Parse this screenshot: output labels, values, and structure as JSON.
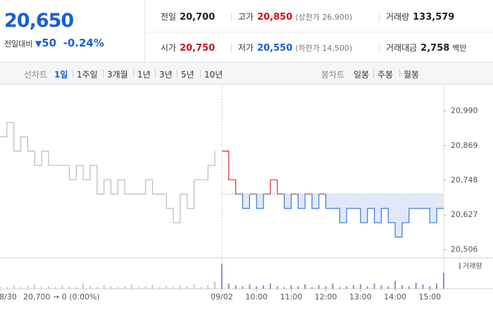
{
  "header": {
    "price": "20,650",
    "change_label": "전일대비",
    "change": "50",
    "change_pct": "-0.24%",
    "stats": [
      {
        "label": "전일",
        "value": "20,700"
      },
      {
        "label": "고가",
        "value": "20,850",
        "note": "(상한가 26,900)"
      },
      {
        "label": "거래량",
        "value": "133,579"
      },
      {
        "label": "시가",
        "value": "20,750"
      },
      {
        "label": "저가",
        "value": "20,550",
        "note": "(하한가 14,500)"
      },
      {
        "label": "거래대금",
        "value": "2,758",
        "note": "백만"
      }
    ]
  },
  "tabs": {
    "line_label": "선차트",
    "line": [
      "1일",
      "1주일",
      "3개월",
      "1년",
      "3년",
      "5년",
      "10년"
    ],
    "selected": 0,
    "candle_label": "봉차트",
    "candle": [
      "일봉",
      "주봉",
      "월봉"
    ]
  },
  "chart_data": {
    "type": "line",
    "categories": [
      "08/30",
      null,
      null,
      null,
      null,
      null,
      null,
      null,
      null,
      null,
      null,
      null,
      null,
      null,
      null,
      null,
      null,
      null,
      null,
      null,
      null,
      null,
      null,
      null,
      null,
      null,
      null,
      null,
      null,
      null,
      null,
      null,
      "09/02",
      null,
      null,
      null,
      null,
      "10:00",
      null,
      null,
      null,
      null,
      "11:00",
      null,
      null,
      null,
      null,
      "12:00",
      null,
      null,
      null,
      null,
      "13:00",
      null,
      null,
      null,
      null,
      "14:00",
      null,
      null,
      null,
      null,
      "15:00",
      null,
      null
    ],
    "series": [
      {
        "color": "#bbbbbb",
        "values": [
          20900,
          20950,
          20850,
          20900,
          20850,
          20800,
          20850,
          20800,
          20800,
          20800,
          20750,
          20800,
          20750,
          20800,
          20700,
          20750,
          20700,
          20750,
          20700,
          20700,
          20700,
          20750,
          20700,
          20700,
          20650,
          20600,
          20700,
          20650,
          20750,
          20750,
          20800,
          20850,
          null,
          null,
          null,
          null,
          null,
          null,
          null,
          null,
          null,
          null,
          null,
          null,
          null,
          null,
          null,
          null,
          null,
          null,
          null,
          null,
          null,
          null,
          null,
          null,
          null,
          null,
          null,
          null,
          null,
          null,
          null,
          null,
          null
        ]
      },
      {
        "color": "#3b78d8",
        "color_up": "#e0262e",
        "fill": "#dfe9f8",
        "values": [
          null,
          null,
          null,
          null,
          null,
          null,
          null,
          null,
          null,
          null,
          null,
          null,
          null,
          null,
          null,
          null,
          null,
          null,
          null,
          null,
          null,
          null,
          null,
          null,
          null,
          null,
          null,
          null,
          null,
          null,
          null,
          null,
          20850,
          20750,
          20700,
          20650,
          20700,
          20650,
          20700,
          20750,
          20700,
          20650,
          20700,
          20650,
          20700,
          20650,
          20700,
          20650,
          20650,
          20600,
          20650,
          20650,
          20600,
          20650,
          20600,
          20650,
          20600,
          20550,
          20600,
          20650,
          20650,
          20650,
          20600,
          20650,
          20650
        ]
      }
    ],
    "baseline": 20700,
    "ylim": [
      20480,
      21070
    ],
    "yticks": [
      {
        "value": 20506,
        "label": "20,506"
      },
      {
        "value": 20627,
        "label": "20,627"
      },
      {
        "value": 20748,
        "label": "20,748"
      },
      {
        "value": 20869,
        "label": "20,869"
      },
      {
        "value": 20990,
        "label": "20,990"
      }
    ],
    "volume": {
      "ylim": [
        0,
        30
      ],
      "series": [
        {
          "color": "#c8c8c8",
          "values": [
            3,
            2,
            4,
            2,
            3,
            5,
            2,
            3,
            2,
            4,
            3,
            2,
            6,
            3,
            2,
            4,
            3,
            2,
            3,
            5,
            2,
            3,
            4,
            2,
            3,
            2,
            4,
            3,
            5,
            2,
            4,
            8,
            null,
            null,
            null,
            null,
            null,
            null,
            null,
            null,
            null,
            null,
            null,
            null,
            null,
            null,
            null,
            null,
            null,
            null,
            null,
            null,
            null,
            null,
            null,
            null,
            null,
            null,
            null,
            null,
            null,
            null,
            null,
            null,
            null
          ]
        },
        {
          "name": "거래량",
          "color": "#9b8bc4",
          "values": [
            null,
            null,
            null,
            null,
            null,
            null,
            null,
            null,
            null,
            null,
            null,
            null,
            null,
            null,
            null,
            null,
            null,
            null,
            null,
            null,
            null,
            null,
            null,
            null,
            null,
            null,
            null,
            null,
            null,
            null,
            null,
            null,
            28,
            6,
            4,
            3,
            5,
            3,
            4,
            6,
            3,
            2,
            4,
            3,
            5,
            2,
            4,
            3,
            6,
            2,
            3,
            4,
            5,
            3,
            6,
            4,
            3,
            9,
            4,
            3,
            7,
            5,
            3,
            6,
            18
          ]
        }
      ]
    },
    "note": "20,700 → 0 (0.00%)"
  }
}
